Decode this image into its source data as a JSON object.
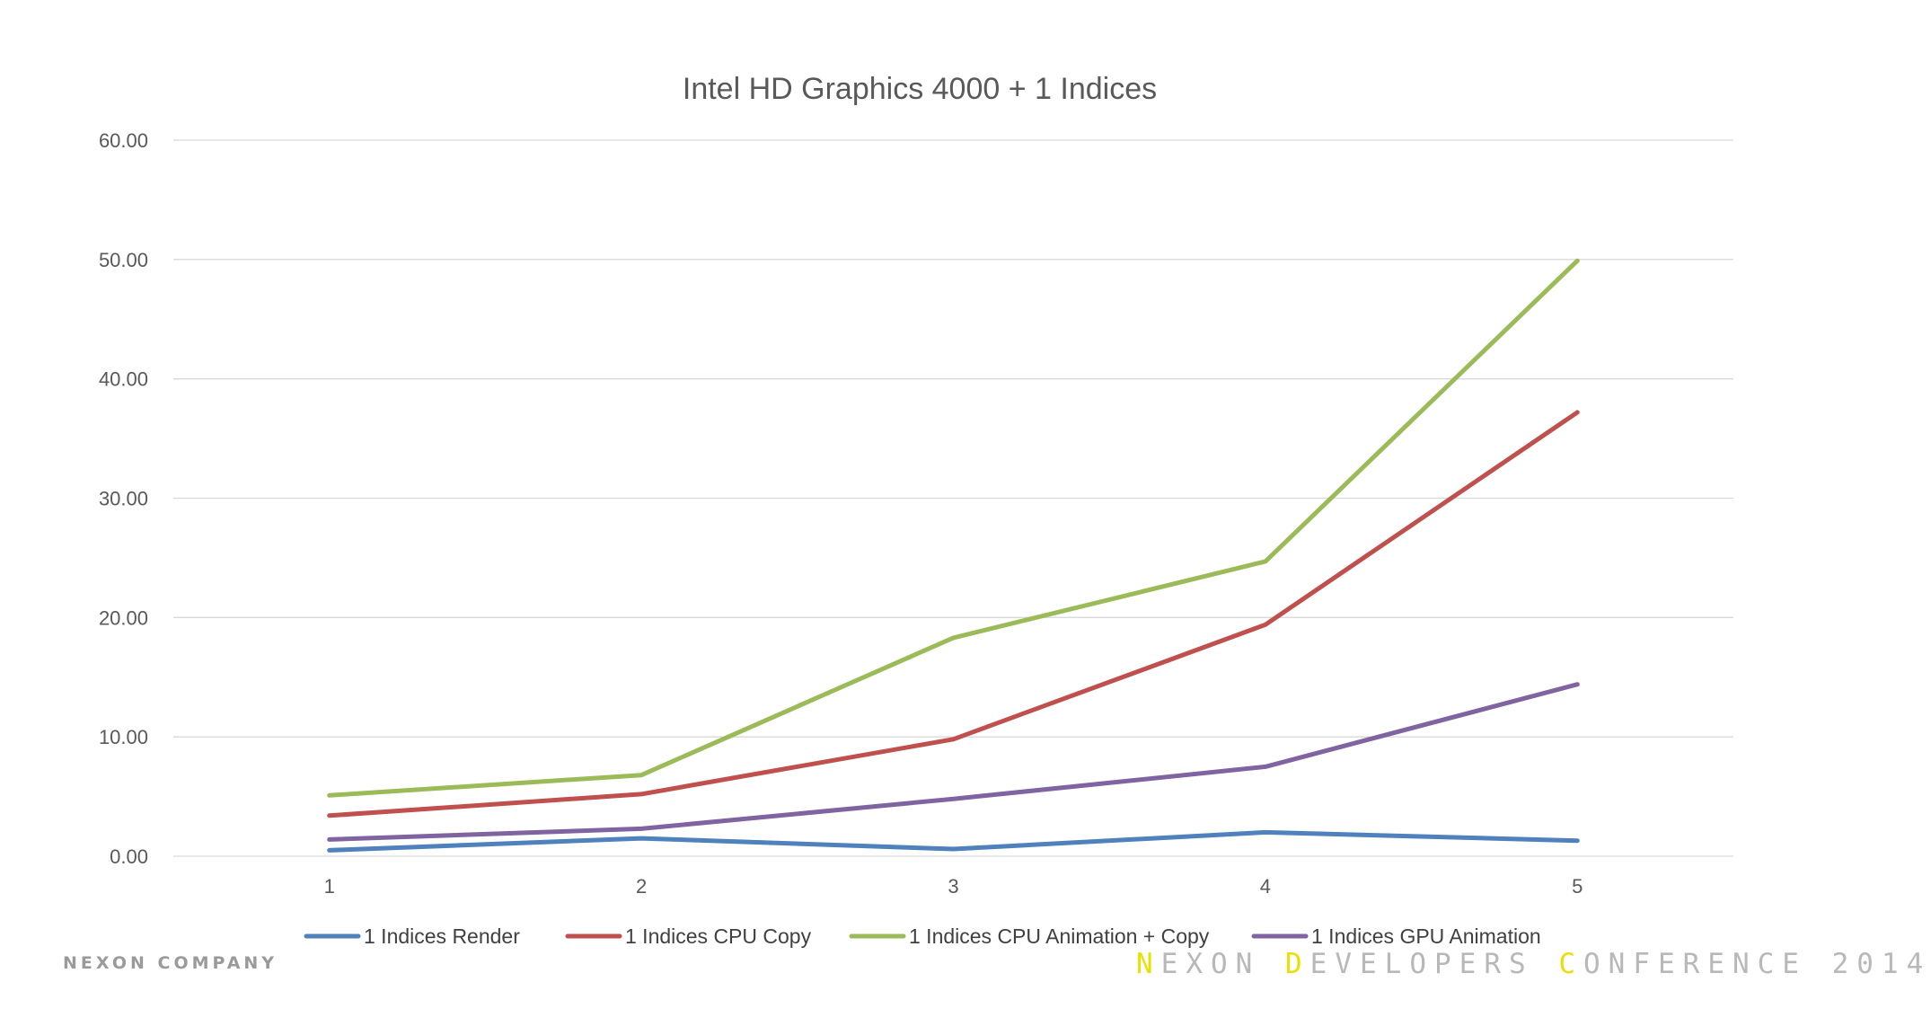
{
  "chart_data": {
    "type": "line",
    "title": "Intel HD Graphics 4000 + 1 Indices",
    "x": [
      "1",
      "2",
      "3",
      "4",
      "5"
    ],
    "ylim": [
      0,
      60
    ],
    "yticks": [
      "0.00",
      "10.00",
      "20.00",
      "30.00",
      "40.00",
      "50.00",
      "60.00"
    ],
    "grid": true,
    "legend_position": "bottom",
    "series": [
      {
        "name": "1 Indices Render",
        "color": "#4f81bd",
        "values": [
          0.5,
          1.5,
          0.6,
          2.0,
          1.3
        ]
      },
      {
        "name": "1 Indices CPU Copy",
        "color": "#c0504d",
        "values": [
          3.4,
          5.2,
          9.8,
          19.4,
          37.2
        ]
      },
      {
        "name": "1 Indices CPU Animation + Copy",
        "color": "#9bbb59",
        "values": [
          5.1,
          6.8,
          18.3,
          24.7,
          49.9
        ]
      },
      {
        "name": "1 Indices GPU Animation",
        "color": "#8064a2",
        "values": [
          1.4,
          2.3,
          4.8,
          7.5,
          14.4
        ]
      }
    ]
  },
  "footer": {
    "company": "NEXON COMPANY",
    "conference_parts": [
      {
        "letter": "N",
        "rest": "EXON "
      },
      {
        "letter": "D",
        "rest": "EVELOPERS "
      },
      {
        "letter": "C",
        "rest": "ONFERENCE "
      }
    ],
    "year": "2014"
  }
}
